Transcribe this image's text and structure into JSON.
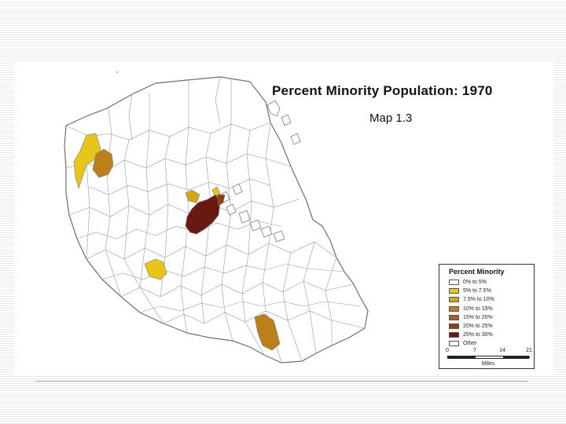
{
  "map": {
    "title": "Percent Minority Population:  1970",
    "subtitle": "Map 1.3",
    "colors": {
      "background": "#ffffff",
      "boundary": "#808080",
      "other": "#ffffff"
    }
  },
  "legend": {
    "title": "Percent Minority",
    "items": [
      {
        "label": "0% to 5%",
        "color": "#ffffff"
      },
      {
        "label": "5% to 7.5%",
        "color": "#e8c619"
      },
      {
        "label": "7.5% to 10%",
        "color": "#d6a516"
      },
      {
        "label": "10% to 15%",
        "color": "#bd7f1a"
      },
      {
        "label": "15% to 20%",
        "color": "#a8601a"
      },
      {
        "label": "20% to 25%",
        "color": "#8f3e16"
      },
      {
        "label": "25% to 30%",
        "color": "#6a1812"
      },
      {
        "label": "Other",
        "color": "#ffffff"
      }
    ],
    "scale": {
      "ticks": [
        "0",
        "7",
        "14",
        "21"
      ],
      "unit": "Miles"
    }
  }
}
